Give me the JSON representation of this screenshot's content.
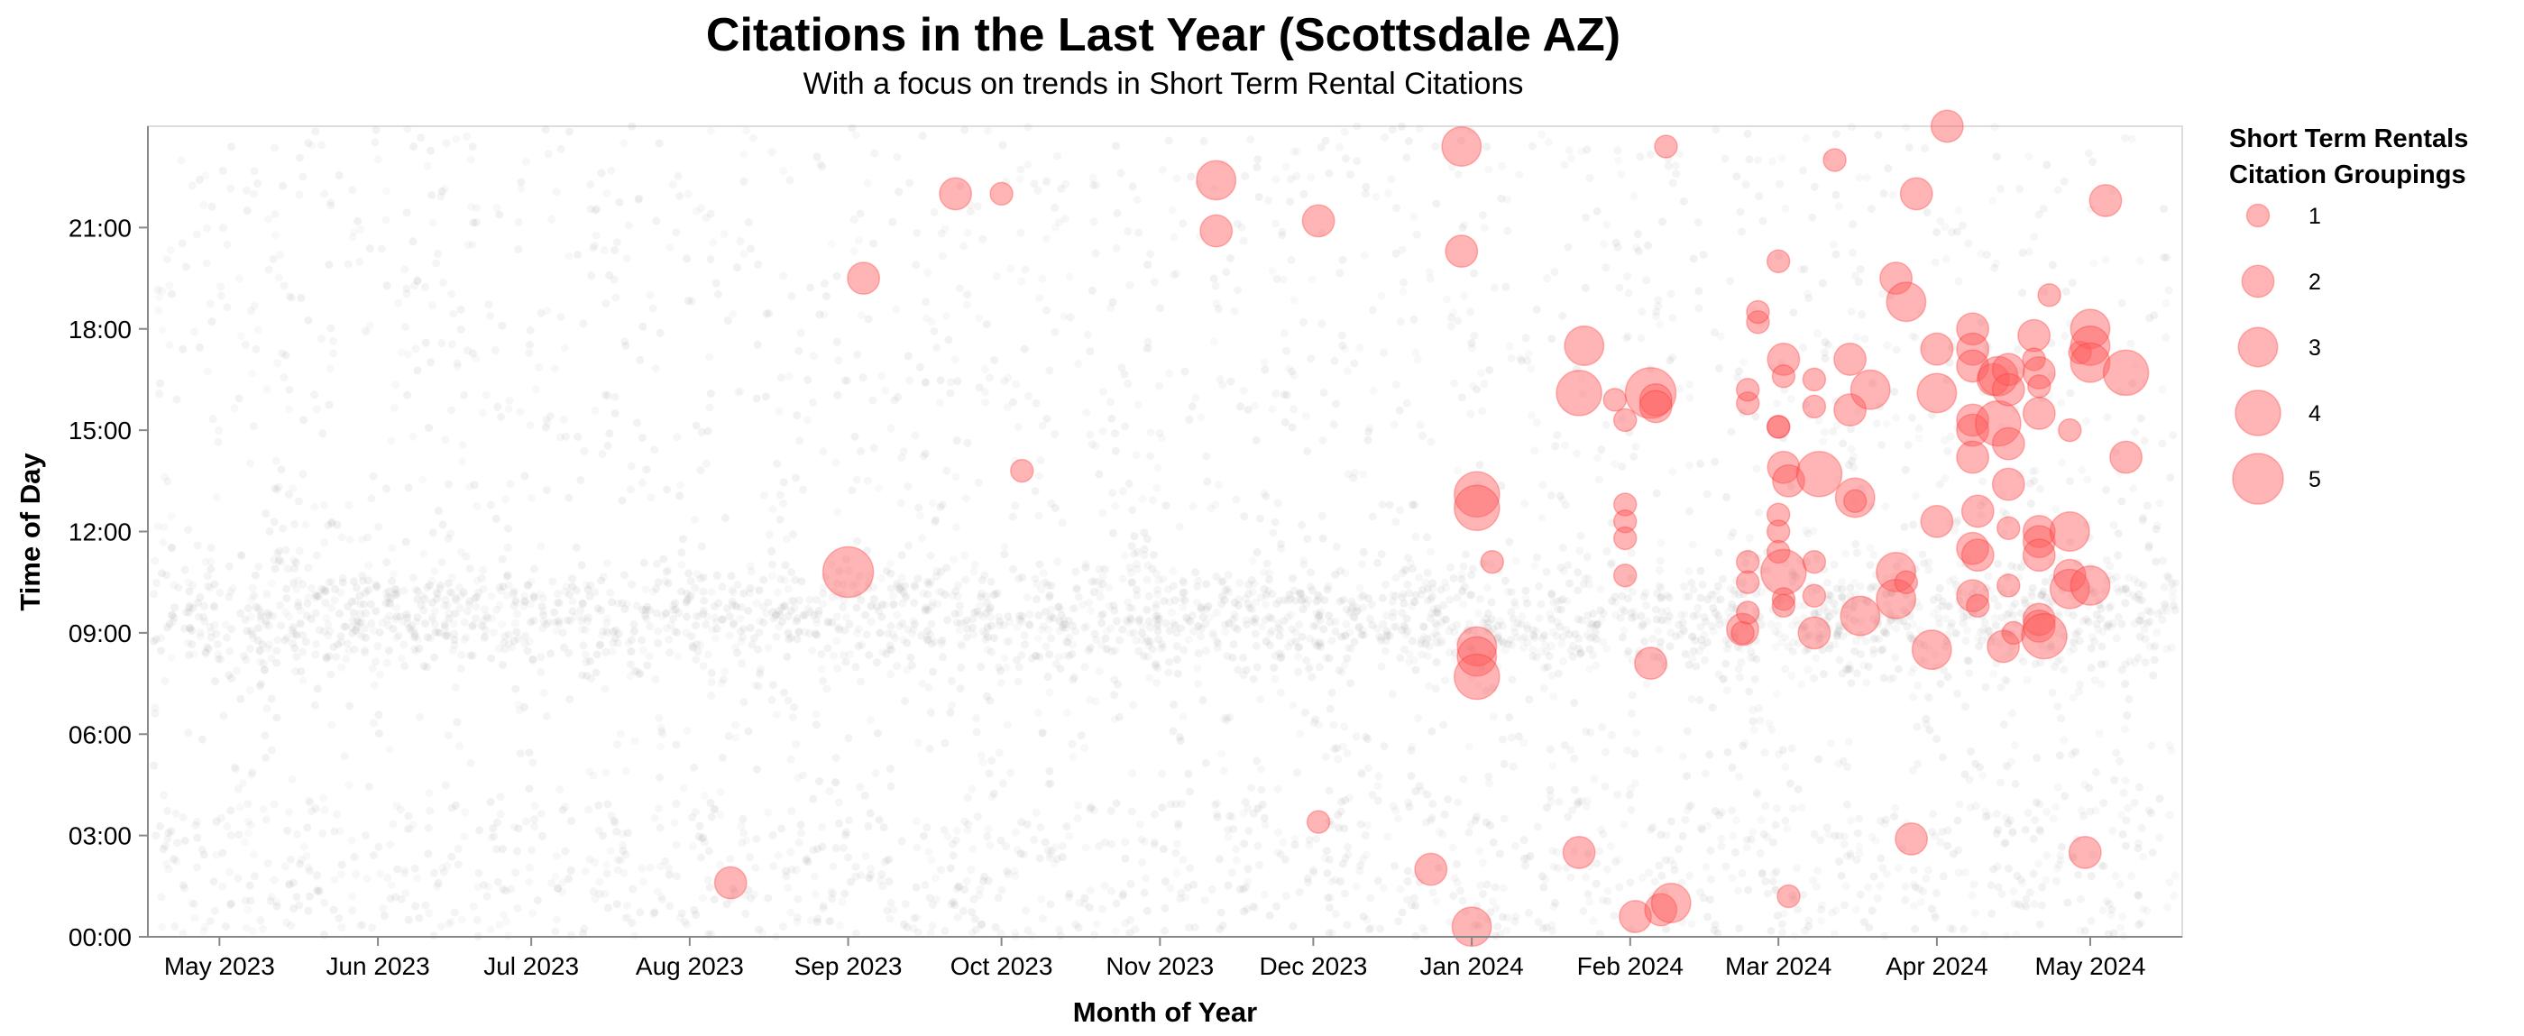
{
  "chart_data": {
    "type": "scatter",
    "title": "Citations in the Last Year (Scottsdale AZ)",
    "subtitle": "With a focus on trends in Short Term Rental Citations",
    "xlabel": "Month of Year",
    "ylabel": "Time of Day",
    "x_type": "date",
    "xlim": [
      "2023-04-17",
      "2024-05-19"
    ],
    "ylim": [
      0,
      24
    ],
    "x_ticks": [
      {
        "date": "2023-05-01",
        "label": "May 2023"
      },
      {
        "date": "2023-06-01",
        "label": "Jun 2023"
      },
      {
        "date": "2023-07-01",
        "label": "Jul 2023"
      },
      {
        "date": "2023-08-01",
        "label": "Aug 2023"
      },
      {
        "date": "2023-09-01",
        "label": "Sep 2023"
      },
      {
        "date": "2023-10-01",
        "label": "Oct 2023"
      },
      {
        "date": "2023-11-01",
        "label": "Nov 2023"
      },
      {
        "date": "2023-12-01",
        "label": "Dec 2023"
      },
      {
        "date": "2024-01-01",
        "label": "Jan 2024"
      },
      {
        "date": "2024-02-01",
        "label": "Feb 2024"
      },
      {
        "date": "2024-03-01",
        "label": "Mar 2024"
      },
      {
        "date": "2024-04-01",
        "label": "Apr 2024"
      },
      {
        "date": "2024-05-01",
        "label": "May 2024"
      }
    ],
    "y_ticks": [
      {
        "value": 0,
        "label": "00:00"
      },
      {
        "value": 3,
        "label": "03:00"
      },
      {
        "value": 6,
        "label": "06:00"
      },
      {
        "value": 9,
        "label": "09:00"
      },
      {
        "value": 12,
        "label": "12:00"
      },
      {
        "value": 15,
        "label": "15:00"
      },
      {
        "value": 18,
        "label": "18:00"
      },
      {
        "value": 21,
        "label": "21:00"
      }
    ],
    "grid": false,
    "legend": {
      "title_lines": [
        "Short Term Rentals",
        "Citation Groupings"
      ],
      "placement": "top-right",
      "entries": [
        {
          "label": "1",
          "count": 1
        },
        {
          "label": "2",
          "count": 2
        },
        {
          "label": "3",
          "count": 3
        },
        {
          "label": "4",
          "count": 4
        },
        {
          "label": "5",
          "count": 5
        }
      ]
    },
    "colors": {
      "str_fill": "#ff5a5a",
      "str_stroke": "#ff3030",
      "background_points": "#888888",
      "axis": "#888888"
    },
    "series": [
      {
        "name": "Short Term Rentals",
        "points": [
          {
            "date": "2023-08-09",
            "time": 1.6,
            "count": 2
          },
          {
            "date": "2023-09-01",
            "time": 10.8,
            "count": 5
          },
          {
            "date": "2023-09-04",
            "time": 19.5,
            "count": 2
          },
          {
            "date": "2023-09-22",
            "time": 22.0,
            "count": 2
          },
          {
            "date": "2023-10-01",
            "time": 22.0,
            "count": 1
          },
          {
            "date": "2023-10-05",
            "time": 13.8,
            "count": 1
          },
          {
            "date": "2023-11-12",
            "time": 22.4,
            "count": 3
          },
          {
            "date": "2023-11-12",
            "time": 20.9,
            "count": 2
          },
          {
            "date": "2023-12-02",
            "time": 21.2,
            "count": 2
          },
          {
            "date": "2023-12-02",
            "time": 3.4,
            "count": 1
          },
          {
            "date": "2023-12-24",
            "time": 2.0,
            "count": 2
          },
          {
            "date": "2023-12-30",
            "time": 23.4,
            "count": 3
          },
          {
            "date": "2023-12-30",
            "time": 20.3,
            "count": 2
          },
          {
            "date": "2024-01-01",
            "time": 0.3,
            "count": 3
          },
          {
            "date": "2024-01-02",
            "time": 13.1,
            "count": 4
          },
          {
            "date": "2024-01-02",
            "time": 12.7,
            "count": 4
          },
          {
            "date": "2024-01-02",
            "time": 8.6,
            "count": 3
          },
          {
            "date": "2024-01-02",
            "time": 8.3,
            "count": 3
          },
          {
            "date": "2024-01-02",
            "time": 7.7,
            "count": 4
          },
          {
            "date": "2024-01-05",
            "time": 11.1,
            "count": 1
          },
          {
            "date": "2024-01-22",
            "time": 16.1,
            "count": 4
          },
          {
            "date": "2024-01-22",
            "time": 2.5,
            "count": 2
          },
          {
            "date": "2024-01-23",
            "time": 17.5,
            "count": 3
          },
          {
            "date": "2024-01-29",
            "time": 15.9,
            "count": 1
          },
          {
            "date": "2024-01-31",
            "time": 15.3,
            "count": 1
          },
          {
            "date": "2024-01-31",
            "time": 12.8,
            "count": 1
          },
          {
            "date": "2024-01-31",
            "time": 12.3,
            "count": 1
          },
          {
            "date": "2024-01-31",
            "time": 11.8,
            "count": 1
          },
          {
            "date": "2024-01-31",
            "time": 10.7,
            "count": 1
          },
          {
            "date": "2024-02-02",
            "time": 0.6,
            "count": 2
          },
          {
            "date": "2024-02-05",
            "time": 16.1,
            "count": 5
          },
          {
            "date": "2024-02-06",
            "time": 15.9,
            "count": 2
          },
          {
            "date": "2024-02-06",
            "time": 15.7,
            "count": 2
          },
          {
            "date": "2024-02-05",
            "time": 8.1,
            "count": 2
          },
          {
            "date": "2024-02-07",
            "time": 0.8,
            "count": 2
          },
          {
            "date": "2024-02-09",
            "time": 1.0,
            "count": 3
          },
          {
            "date": "2024-02-08",
            "time": 23.4,
            "count": 1
          },
          {
            "date": "2024-02-23",
            "time": 9.1,
            "count": 2
          },
          {
            "date": "2024-02-23",
            "time": 9.0,
            "count": 1
          },
          {
            "date": "2024-02-24",
            "time": 15.8,
            "count": 1
          },
          {
            "date": "2024-02-24",
            "time": 16.2,
            "count": 1
          },
          {
            "date": "2024-02-24",
            "time": 11.1,
            "count": 1
          },
          {
            "date": "2024-02-24",
            "time": 10.5,
            "count": 1
          },
          {
            "date": "2024-02-24",
            "time": 9.6,
            "count": 1
          },
          {
            "date": "2024-02-26",
            "time": 18.2,
            "count": 1
          },
          {
            "date": "2024-02-26",
            "time": 18.5,
            "count": 1
          },
          {
            "date": "2024-03-01",
            "time": 20.0,
            "count": 1
          },
          {
            "date": "2024-03-02",
            "time": 17.1,
            "count": 2
          },
          {
            "date": "2024-03-02",
            "time": 16.6,
            "count": 1
          },
          {
            "date": "2024-03-01",
            "time": 15.1,
            "count": 1
          },
          {
            "date": "2024-03-01",
            "time": 15.1,
            "count": 1
          },
          {
            "date": "2024-03-02",
            "time": 13.9,
            "count": 2
          },
          {
            "date": "2024-03-03",
            "time": 13.5,
            "count": 2
          },
          {
            "date": "2024-03-01",
            "time": 12.5,
            "count": 1
          },
          {
            "date": "2024-03-01",
            "time": 12.0,
            "count": 1
          },
          {
            "date": "2024-03-01",
            "time": 11.4,
            "count": 1
          },
          {
            "date": "2024-03-02",
            "time": 10.8,
            "count": 4
          },
          {
            "date": "2024-03-02",
            "time": 10.0,
            "count": 1
          },
          {
            "date": "2024-03-02",
            "time": 9.8,
            "count": 1
          },
          {
            "date": "2024-03-03",
            "time": 1.2,
            "count": 1
          },
          {
            "date": "2024-03-08",
            "time": 16.5,
            "count": 1
          },
          {
            "date": "2024-03-08",
            "time": 15.7,
            "count": 1
          },
          {
            "date": "2024-03-09",
            "time": 13.7,
            "count": 4
          },
          {
            "date": "2024-03-08",
            "time": 11.1,
            "count": 1
          },
          {
            "date": "2024-03-08",
            "time": 10.1,
            "count": 1
          },
          {
            "date": "2024-03-08",
            "time": 9.0,
            "count": 2
          },
          {
            "date": "2024-03-12",
            "time": 23.0,
            "count": 1
          },
          {
            "date": "2024-03-15",
            "time": 17.1,
            "count": 2
          },
          {
            "date": "2024-03-15",
            "time": 15.6,
            "count": 2
          },
          {
            "date": "2024-03-16",
            "time": 13.0,
            "count": 3
          },
          {
            "date": "2024-03-16",
            "time": 12.9,
            "count": 1
          },
          {
            "date": "2024-03-17",
            "time": 9.5,
            "count": 3
          },
          {
            "date": "2024-03-19",
            "time": 16.2,
            "count": 3
          },
          {
            "date": "2024-03-24",
            "time": 19.5,
            "count": 2
          },
          {
            "date": "2024-03-24",
            "time": 10.8,
            "count": 3
          },
          {
            "date": "2024-03-24",
            "time": 10.0,
            "count": 3
          },
          {
            "date": "2024-03-26",
            "time": 18.8,
            "count": 3
          },
          {
            "date": "2024-03-26",
            "time": 10.5,
            "count": 1
          },
          {
            "date": "2024-03-27",
            "time": 2.9,
            "count": 2
          },
          {
            "date": "2024-03-28",
            "time": 22.0,
            "count": 2
          },
          {
            "date": "2024-03-31",
            "time": 8.5,
            "count": 3
          },
          {
            "date": "2024-04-01",
            "time": 17.4,
            "count": 2
          },
          {
            "date": "2024-04-01",
            "time": 16.1,
            "count": 3
          },
          {
            "date": "2024-04-01",
            "time": 12.3,
            "count": 2
          },
          {
            "date": "2024-04-03",
            "time": 24.0,
            "count": 2
          },
          {
            "date": "2024-04-08",
            "time": 18.0,
            "count": 2
          },
          {
            "date": "2024-04-08",
            "time": 17.4,
            "count": 2
          },
          {
            "date": "2024-04-08",
            "time": 16.9,
            "count": 2
          },
          {
            "date": "2024-04-08",
            "time": 15.3,
            "count": 2
          },
          {
            "date": "2024-04-08",
            "time": 15.0,
            "count": 2
          },
          {
            "date": "2024-04-08",
            "time": 14.2,
            "count": 2
          },
          {
            "date": "2024-04-09",
            "time": 12.6,
            "count": 2
          },
          {
            "date": "2024-04-08",
            "time": 11.5,
            "count": 2
          },
          {
            "date": "2024-04-09",
            "time": 11.3,
            "count": 2
          },
          {
            "date": "2024-04-08",
            "time": 10.1,
            "count": 2
          },
          {
            "date": "2024-04-09",
            "time": 9.8,
            "count": 1
          },
          {
            "date": "2024-04-12",
            "time": 16.5,
            "count": 2
          },
          {
            "date": "2024-04-13",
            "time": 16.6,
            "count": 3
          },
          {
            "date": "2024-04-13",
            "time": 15.2,
            "count": 4
          },
          {
            "date": "2024-04-15",
            "time": 16.8,
            "count": 2
          },
          {
            "date": "2024-04-15",
            "time": 16.2,
            "count": 2
          },
          {
            "date": "2024-04-15",
            "time": 14.6,
            "count": 2
          },
          {
            "date": "2024-04-15",
            "time": 13.4,
            "count": 2
          },
          {
            "date": "2024-04-15",
            "time": 12.1,
            "count": 1
          },
          {
            "date": "2024-04-15",
            "time": 10.4,
            "count": 1
          },
          {
            "date": "2024-04-14",
            "time": 8.6,
            "count": 2
          },
          {
            "date": "2024-04-16",
            "time": 9.0,
            "count": 1
          },
          {
            "date": "2024-04-20",
            "time": 17.8,
            "count": 2
          },
          {
            "date": "2024-04-20",
            "time": 17.1,
            "count": 1
          },
          {
            "date": "2024-04-21",
            "time": 16.7,
            "count": 2
          },
          {
            "date": "2024-04-21",
            "time": 16.3,
            "count": 1
          },
          {
            "date": "2024-04-21",
            "time": 15.5,
            "count": 2
          },
          {
            "date": "2024-04-21",
            "time": 12.0,
            "count": 2
          },
          {
            "date": "2024-04-21",
            "time": 11.7,
            "count": 2
          },
          {
            "date": "2024-04-21",
            "time": 11.3,
            "count": 2
          },
          {
            "date": "2024-04-21",
            "time": 9.4,
            "count": 2
          },
          {
            "date": "2024-04-21",
            "time": 9.2,
            "count": 2
          },
          {
            "date": "2024-04-22",
            "time": 8.9,
            "count": 4
          },
          {
            "date": "2024-04-23",
            "time": 19.0,
            "count": 1
          },
          {
            "date": "2024-04-27",
            "time": 15.0,
            "count": 1
          },
          {
            "date": "2024-04-27",
            "time": 12.0,
            "count": 3
          },
          {
            "date": "2024-04-27",
            "time": 10.7,
            "count": 2
          },
          {
            "date": "2024-04-27",
            "time": 10.3,
            "count": 3
          },
          {
            "date": "2024-04-29",
            "time": 17.3,
            "count": 1
          },
          {
            "date": "2024-04-30",
            "time": 2.5,
            "count": 2
          },
          {
            "date": "2024-05-01",
            "time": 18.0,
            "count": 3
          },
          {
            "date": "2024-05-01",
            "time": 17.5,
            "count": 3
          },
          {
            "date": "2024-05-01",
            "time": 17.0,
            "count": 3
          },
          {
            "date": "2024-05-01",
            "time": 10.4,
            "count": 3
          },
          {
            "date": "2024-05-04",
            "time": 21.8,
            "count": 2
          },
          {
            "date": "2024-05-08",
            "time": 16.7,
            "count": 4
          },
          {
            "date": "2024-05-08",
            "time": 14.2,
            "count": 2
          }
        ]
      }
    ]
  }
}
